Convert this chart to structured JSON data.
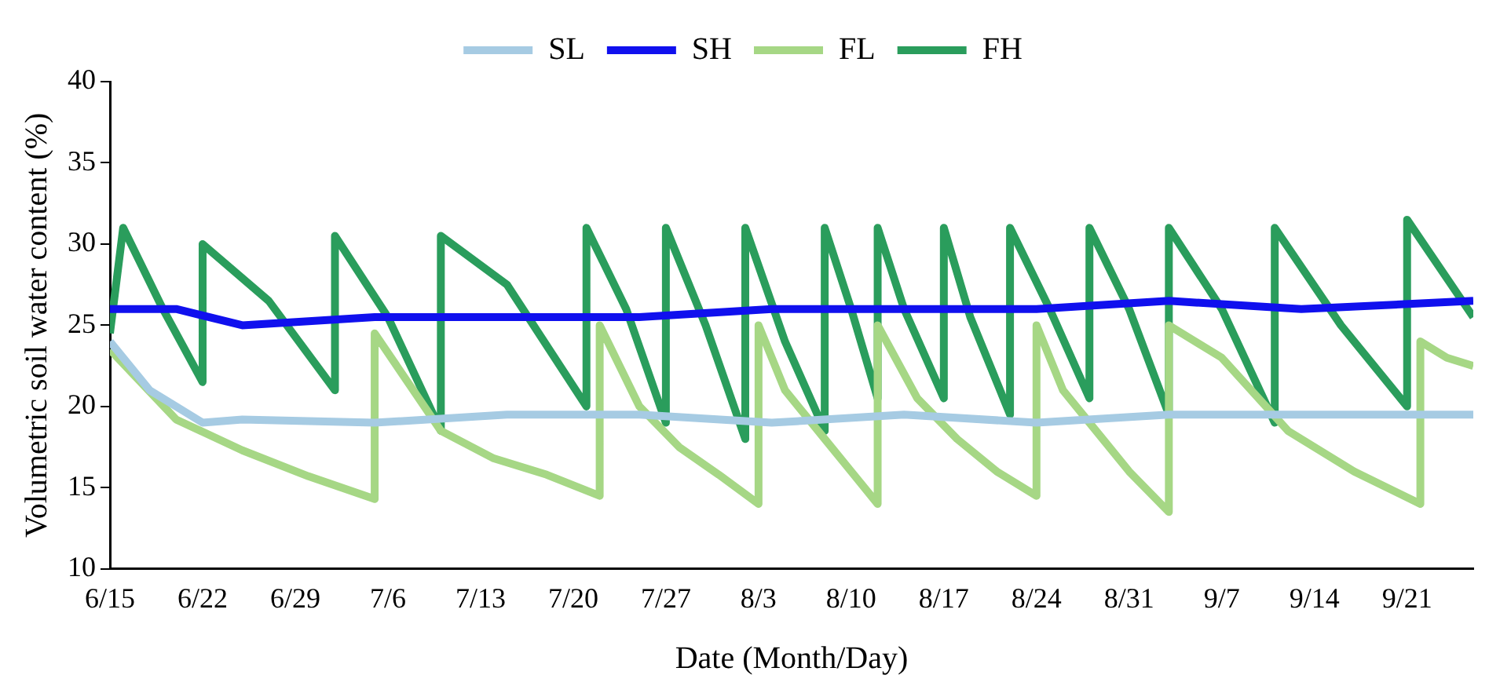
{
  "chart_data": {
    "type": "line",
    "xlabel": "Date (Month/Day)",
    "ylabel": "Volumetric soil water content (%)",
    "xlim": [
      "--06-15",
      "--09-26"
    ],
    "ylim": [
      10,
      40
    ],
    "yticks": [
      10,
      15,
      20,
      25,
      30,
      35,
      40
    ],
    "xticks": [
      {
        "value": "--06-15",
        "label": "6/15"
      },
      {
        "value": "--06-22",
        "label": "6/22"
      },
      {
        "value": "--06-29",
        "label": "6/29"
      },
      {
        "value": "--07-06",
        "label": "7/6"
      },
      {
        "value": "--07-13",
        "label": "7/13"
      },
      {
        "value": "--07-20",
        "label": "7/20"
      },
      {
        "value": "--07-27",
        "label": "7/27"
      },
      {
        "value": "--08-03",
        "label": "8/3"
      },
      {
        "value": "--08-10",
        "label": "8/10"
      },
      {
        "value": "--08-17",
        "label": "8/17"
      },
      {
        "value": "--08-24",
        "label": "8/24"
      },
      {
        "value": "--08-31",
        "label": "8/31"
      },
      {
        "value": "--09-07",
        "label": "9/7"
      },
      {
        "value": "--09-14",
        "label": "9/14"
      },
      {
        "value": "--09-21",
        "label": "9/21"
      }
    ],
    "legend": "top",
    "marker": "none",
    "line_style": "solid",
    "grid": false,
    "series": [
      {
        "name": "SL",
        "color": "#a6cbe3",
        "x": [
          "--06-15",
          "--06-18",
          "--06-22",
          "--06-25",
          "--07-05",
          "--07-15",
          "--07-25",
          "--08-04",
          "--08-14",
          "--08-24",
          "--09-03",
          "--09-13",
          "--09-26"
        ],
        "values": [
          24,
          21,
          19,
          19.2,
          19,
          19.5,
          19.5,
          19,
          19.5,
          19,
          19.5,
          19.5,
          19.5
        ]
      },
      {
        "name": "SH",
        "color": "#1010ee",
        "x": [
          "--06-15",
          "--06-20",
          "--06-25",
          "--07-05",
          "--07-15",
          "--07-25",
          "--08-04",
          "--08-14",
          "--08-24",
          "--09-03",
          "--09-13",
          "--09-26"
        ],
        "values": [
          26,
          26,
          25,
          25.5,
          25.5,
          25.5,
          26,
          26,
          26,
          26.5,
          26,
          26.5
        ]
      },
      {
        "name": "FL",
        "color": "#a6d785",
        "x": [
          "--06-15",
          "--06-20",
          "--06-25",
          "--06-30",
          "--07-05",
          "--07-05",
          "--07-10",
          "--07-14",
          "--07-18",
          "--07-22",
          "--07-22",
          "--07-25",
          "--07-28",
          "--07-31",
          "--08-03",
          "--08-03",
          "--08-05",
          "--08-08",
          "--08-10",
          "--08-12",
          "--08-12",
          "--08-15",
          "--08-18",
          "--08-21",
          "--08-24",
          "--08-24",
          "--08-26",
          "--08-29",
          "--08-31",
          "--09-03",
          "--09-03",
          "--09-07",
          "--09-12",
          "--09-17",
          "--09-22",
          "--09-22",
          "--09-24",
          "--09-26"
        ],
        "values": [
          23.5,
          19.2,
          17.3,
          15.7,
          14.3,
          24.5,
          18.5,
          16.8,
          15.8,
          14.5,
          25,
          20,
          17.5,
          15.8,
          14,
          25,
          21,
          18,
          16,
          14,
          25,
          20.5,
          18,
          16,
          14.5,
          25,
          21,
          18,
          16,
          13.5,
          25,
          23,
          18.5,
          16,
          14,
          24,
          23,
          22.5
        ]
      },
      {
        "name": "FH",
        "color": "#2a9d5c",
        "x": [
          "--06-15",
          "--06-16",
          "--06-19",
          "--06-22",
          "--06-22",
          "--06-27",
          "--07-02",
          "--07-02",
          "--07-06",
          "--07-10",
          "--07-10",
          "--07-15",
          "--07-21",
          "--07-21",
          "--07-24",
          "--07-27",
          "--07-27",
          "--07-30",
          "--08-02",
          "--08-02",
          "--08-05",
          "--08-08",
          "--08-08",
          "--08-10",
          "--08-12",
          "--08-12",
          "--08-14",
          "--08-17",
          "--08-17",
          "--08-19",
          "--08-22",
          "--08-22",
          "--08-25",
          "--08-28",
          "--08-28",
          "--08-31",
          "--09-03",
          "--09-03",
          "--09-07",
          "--09-11",
          "--09-11",
          "--09-16",
          "--09-21",
          "--09-21",
          "--09-26"
        ],
        "values": [
          24.5,
          31,
          26,
          21.5,
          30,
          26.5,
          21,
          30.5,
          25.5,
          18.5,
          30.5,
          27.5,
          20,
          31,
          26,
          19,
          31,
          25,
          18,
          31,
          24,
          18.5,
          31,
          26,
          20.5,
          31,
          26,
          20.5,
          31,
          25.5,
          19.5,
          31,
          26,
          20.5,
          31,
          26,
          19.5,
          31,
          26,
          19,
          31,
          25,
          20,
          31.5,
          25.5
        ]
      }
    ]
  }
}
